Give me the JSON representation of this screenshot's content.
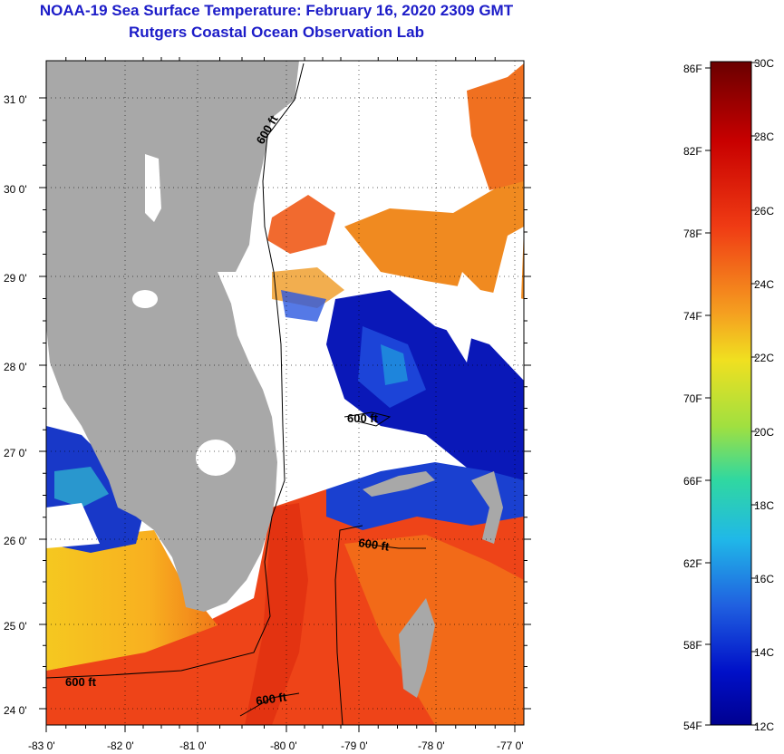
{
  "title": {
    "line1": "NOAA-19 Sea Surface Temperature:  February 16, 2020 2309 GMT",
    "line2": "Rutgers Coastal Ocean Observation Lab"
  },
  "axes": {
    "lon_labels": [
      "-83 0'",
      "-82 0'",
      "-81 0'",
      "-80 0'",
      "-79 0'",
      "-78 0'",
      "-77 0'"
    ],
    "lat_labels": [
      "31 0'",
      "30 0'",
      "29 0'",
      "28 0'",
      "27 0'",
      "26 0'",
      "25 0'",
      "24 0'"
    ]
  },
  "contours": {
    "label": "600 ft"
  },
  "colorbar": {
    "fahrenheit": [
      "86F",
      "82F",
      "78F",
      "74F",
      "70F",
      "66F",
      "62F",
      "58F",
      "54F"
    ],
    "celsius": [
      "30C",
      "28C",
      "26C",
      "24C",
      "22C",
      "20C",
      "18C",
      "16C",
      "14C",
      "12C"
    ]
  },
  "colors": {
    "land": "#a8a8a8",
    "cloud": "#ffffff",
    "title": "#1c1cc8",
    "warm": "#f03c14",
    "cold": "#0a14b4"
  }
}
